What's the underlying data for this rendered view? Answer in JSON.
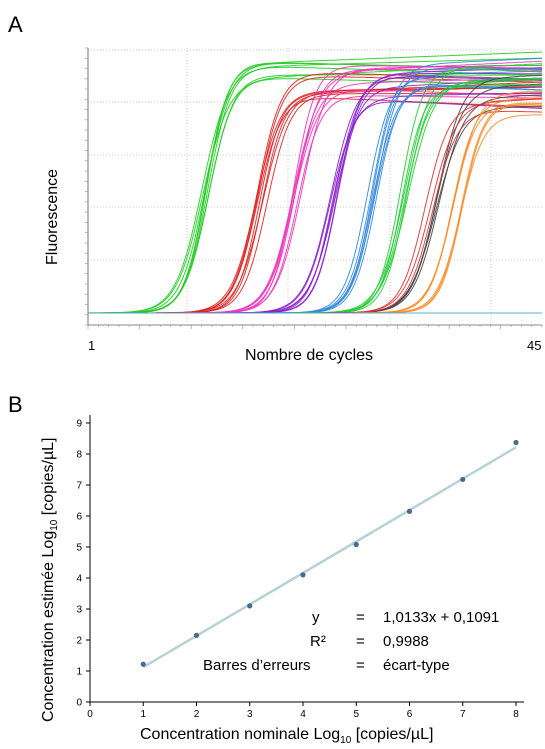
{
  "panel_a": {
    "letter": "A",
    "x_title": "Nombre de cycles",
    "y_title": "Fluorescence",
    "x_tick_min": "1",
    "x_tick_max": "45"
  },
  "panel_b": {
    "letter": "B",
    "x_title_main": "Concentration nominale Log",
    "x_title_sub": "10",
    "x_title_unit": " [copies/µL]",
    "y_title_main": "Concentration estimée Log",
    "y_title_sub": "10",
    "y_title_unit": " [copies/µL]",
    "eq_y_label": "y",
    "eq_y_eq": "=",
    "eq_y_value": "1,0133x + 0,1091",
    "eq_r2_label": "R²",
    "eq_r2_eq": "=",
    "eq_r2_value": "0,9988",
    "eq_err_label": "Barres d’erreurs",
    "eq_err_eq": "=",
    "eq_err_value": "écart-type"
  },
  "chart_data": [
    {
      "type": "line",
      "panel": "A",
      "xlabel": "Nombre de cycles",
      "ylabel": "Fluorescence",
      "xlim": [
        1,
        45
      ],
      "grid": true,
      "series": [
        {
          "color": "#22cc22",
          "midpoint_cycle": 12.5,
          "plateau": 0.93,
          "count": 8
        },
        {
          "color": "#dd2222",
          "midpoint_cycle": 17.8,
          "plateau": 0.84,
          "count": 8
        },
        {
          "color": "#ee33bb",
          "midpoint_cycle": 21.2,
          "plateau": 0.87,
          "count": 7
        },
        {
          "color": "#8822cc",
          "midpoint_cycle": 25.0,
          "plateau": 0.85,
          "count": 7
        },
        {
          "color": "#3388dd",
          "midpoint_cycle": 28.6,
          "plateau": 0.9,
          "count": 7
        },
        {
          "color": "#22cc33",
          "midpoint_cycle": 31.8,
          "plateau": 0.87,
          "count": 6
        },
        {
          "color": "#444444",
          "midpoint_cycle": 34.8,
          "plateau": 0.82,
          "count": 4
        },
        {
          "color": "#dd3333",
          "midpoint_cycle": 34.2,
          "plateau": 0.8,
          "count": 3
        },
        {
          "color": "#ff8822",
          "midpoint_cycle": 36.7,
          "plateau": 0.78,
          "count": 6
        },
        {
          "color": "#44aadd",
          "midpoint_cycle": 99,
          "plateau": 0.0,
          "count": 1
        }
      ]
    },
    {
      "type": "scatter",
      "panel": "B",
      "xlabel": "Concentration nominale Log10 [copies/µL]",
      "ylabel": "Concentration estimée Log10 [copies/µL]",
      "xlim": [
        0,
        8
      ],
      "ylim": [
        0,
        9
      ],
      "x_ticks": [
        0,
        1,
        2,
        3,
        4,
        5,
        6,
        7,
        8
      ],
      "y_ticks": [
        0,
        1,
        2,
        3,
        4,
        5,
        6,
        7,
        8,
        9
      ],
      "x": [
        1,
        2,
        3,
        4,
        5,
        6,
        7,
        8
      ],
      "y": [
        1.22,
        2.15,
        3.1,
        4.1,
        5.08,
        6.15,
        7.18,
        8.37
      ],
      "fit": {
        "slope": 1.0133,
        "intercept": 0.1091,
        "r2": 0.9988
      },
      "point_color": "#4a6b8a",
      "line_color": "#b7d1d6"
    }
  ]
}
